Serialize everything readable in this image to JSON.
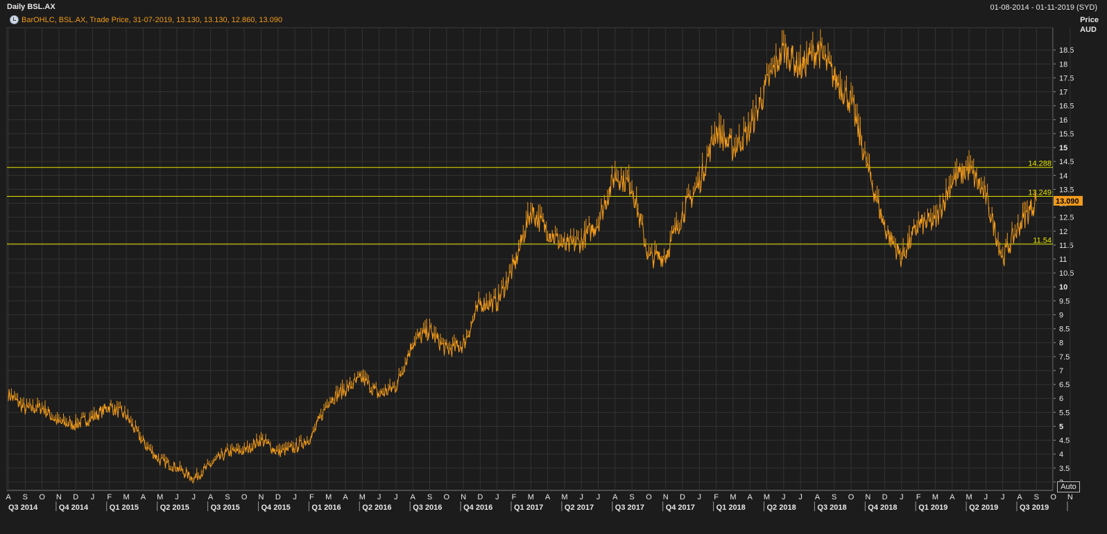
{
  "header": {
    "title": "Daily BSL.AX",
    "date_range": "01-08-2014 - 01-11-2019 (SYD)"
  },
  "legend": {
    "text": "BarOHLC, BSL.AX, Trade Price,  31-07-2019, 13.130, 13.130, 12.860, 13.090"
  },
  "buttons": {
    "auto_label": "Auto"
  },
  "colors": {
    "background": "#1c1c1c",
    "series": "#f29b1b",
    "hline": "#e6e600",
    "grid": "#333333",
    "text": "#e8e8e8"
  },
  "chart_data": {
    "type": "line",
    "title": "Daily BSL.AX",
    "ylabel": "Price\nAUD",
    "ylim": [
      2.7,
      19.3
    ],
    "grid": true,
    "y_ticks": [
      "3",
      "3.5",
      "4",
      "4.5",
      "5",
      "5.5",
      "6",
      "6.5",
      "7",
      "7.5",
      "8",
      "8.5",
      "9",
      "9.5",
      "10",
      "10.5",
      "11",
      "11.5",
      "12",
      "12.5",
      "13",
      "13.5",
      "14",
      "14.5",
      "15",
      "15.5",
      "16",
      "16.5",
      "17",
      "17.5",
      "18",
      "18.5"
    ],
    "y_ticks_bold": [
      "5",
      "10",
      "15"
    ],
    "month_ticks": [
      "A",
      "S",
      "O",
      "N",
      "D",
      "J",
      "F",
      "M",
      "A",
      "M",
      "J",
      "J",
      "A",
      "S",
      "O",
      "N",
      "D",
      "J",
      "F",
      "M",
      "A",
      "M",
      "J",
      "J",
      "A",
      "S",
      "O",
      "N",
      "D",
      "J",
      "F",
      "M",
      "A",
      "M",
      "J",
      "J",
      "A",
      "S",
      "O",
      "N",
      "D",
      "J",
      "F",
      "M",
      "A",
      "M",
      "J",
      "J",
      "A",
      "S",
      "O",
      "N",
      "D",
      "J",
      "F",
      "M",
      "A",
      "M",
      "J",
      "J",
      "A",
      "S",
      "O",
      "N"
    ],
    "quarter_ticks": [
      "Q3 2014",
      "Q4 2014",
      "Q1 2015",
      "Q2 2015",
      "Q3 2015",
      "Q4 2015",
      "Q1 2016",
      "Q2 2016",
      "Q3 2016",
      "Q4 2016",
      "Q1 2017",
      "Q2 2017",
      "Q3 2017",
      "Q4 2017",
      "Q1 2018",
      "Q2 2018",
      "Q3 2018",
      "Q4 2018",
      "Q1 2019",
      "Q2 2019",
      "Q3 2019"
    ],
    "horizontal_lines": [
      {
        "label": "14.288",
        "value": 14.288
      },
      {
        "label": "13.249",
        "value": 13.249
      },
      {
        "label": "11.54",
        "value": 11.54
      }
    ],
    "last_price": {
      "label": "13.090",
      "value": 13.09
    },
    "series": [
      {
        "name": "BSL.AX",
        "points": [
          [
            "2014-08",
            6.15
          ],
          [
            "2014-09",
            5.6
          ],
          [
            "2014-10",
            5.65
          ],
          [
            "2014-11",
            5.1
          ],
          [
            "2014-12",
            5.05
          ],
          [
            "2015-01",
            5.3
          ],
          [
            "2015-02",
            5.7
          ],
          [
            "2015-03",
            5.35
          ],
          [
            "2015-04",
            4.4
          ],
          [
            "2015-05",
            3.75
          ],
          [
            "2015-06",
            3.5
          ],
          [
            "2015-07",
            3.1
          ],
          [
            "2015-08",
            3.6
          ],
          [
            "2015-09",
            4.05
          ],
          [
            "2015-10",
            4.1
          ],
          [
            "2015-11",
            4.5
          ],
          [
            "2015-12",
            4.05
          ],
          [
            "2016-01",
            4.2
          ],
          [
            "2016-02",
            4.6
          ],
          [
            "2016-03",
            5.9
          ],
          [
            "2016-04",
            6.3
          ],
          [
            "2016-05",
            6.7
          ],
          [
            "2016-06",
            6.1
          ],
          [
            "2016-07",
            6.4
          ],
          [
            "2016-08",
            8.0
          ],
          [
            "2016-09",
            8.4
          ],
          [
            "2016-10",
            7.7
          ],
          [
            "2016-11",
            7.9
          ],
          [
            "2016-12",
            9.4
          ],
          [
            "2017-01",
            9.4
          ],
          [
            "2017-02",
            10.7
          ],
          [
            "2017-03",
            12.7
          ],
          [
            "2017-04",
            12.0
          ],
          [
            "2017-05",
            11.4
          ],
          [
            "2017-06",
            11.6
          ],
          [
            "2017-07",
            12.3
          ],
          [
            "2017-08",
            14.0
          ],
          [
            "2017-09",
            13.6
          ],
          [
            "2017-10",
            11.0
          ],
          [
            "2017-11",
            11.1
          ],
          [
            "2017-12",
            12.6
          ],
          [
            "2018-01",
            13.7
          ],
          [
            "2018-02",
            15.6
          ],
          [
            "2018-03",
            14.9
          ],
          [
            "2018-04",
            15.6
          ],
          [
            "2018-05",
            17.2
          ],
          [
            "2018-06",
            18.5
          ],
          [
            "2018-07",
            17.8
          ],
          [
            "2018-08",
            18.5
          ],
          [
            "2018-09",
            17.5
          ],
          [
            "2018-10",
            16.6
          ],
          [
            "2018-11",
            14.2
          ],
          [
            "2018-12",
            12.1
          ],
          [
            "2019-01",
            11.0
          ],
          [
            "2019-02",
            12.2
          ],
          [
            "2019-03",
            12.3
          ],
          [
            "2019-04",
            13.8
          ],
          [
            "2019-05",
            14.2
          ],
          [
            "2019-06",
            13.2
          ],
          [
            "2019-07",
            11.0
          ],
          [
            "2019-08",
            12.2
          ],
          [
            "2019-08-31",
            13.09
          ]
        ]
      }
    ]
  }
}
